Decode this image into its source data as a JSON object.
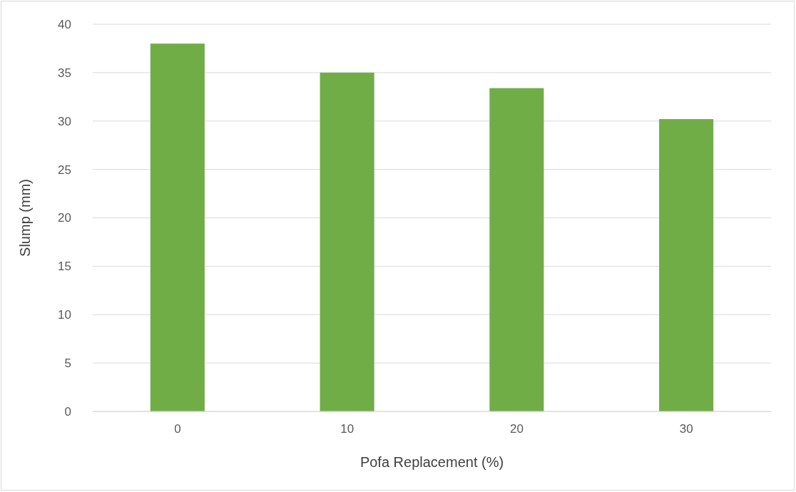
{
  "chart_data": {
    "type": "bar",
    "xlabel": "Pofa Replacement (%)",
    "ylabel": "Slump (mm)",
    "categories": [
      "0",
      "10",
      "20",
      "30"
    ],
    "values": [
      38,
      35,
      33.4,
      30.2
    ],
    "color": "#70ad47",
    "ylim": [
      0,
      40
    ],
    "yticks": [
      0,
      5,
      10,
      15,
      20,
      25,
      30,
      35,
      40
    ],
    "grid": "y"
  }
}
